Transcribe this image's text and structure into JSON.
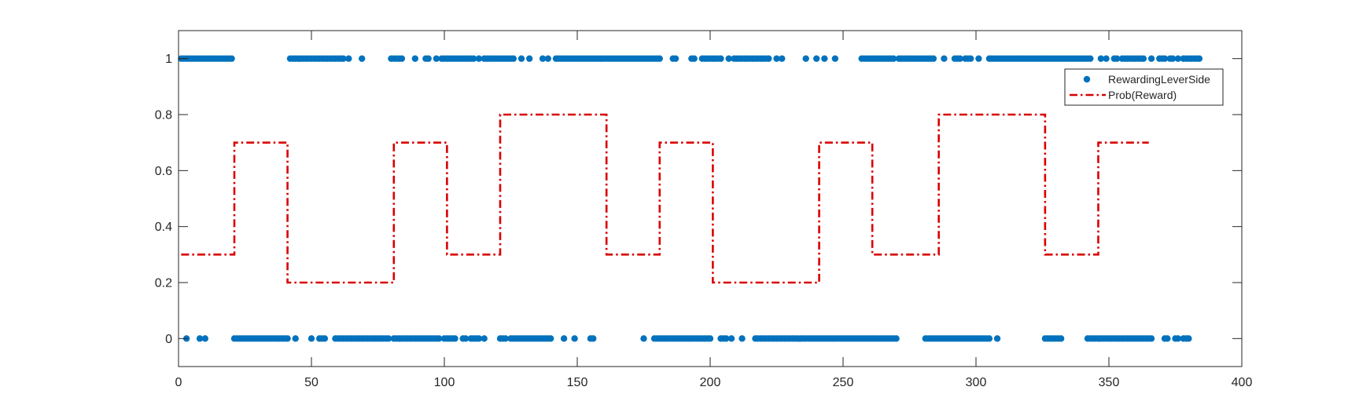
{
  "chart_data": {
    "type": "scatter",
    "title": "",
    "xlabel": "",
    "ylabel": "",
    "xlim": [
      0,
      400
    ],
    "ylim": [
      -0.1,
      1.1
    ],
    "xticks": [
      0,
      50,
      100,
      150,
      200,
      250,
      300,
      350,
      400
    ],
    "yticks": [
      0,
      0.2,
      0.4,
      0.6,
      0.8,
      1
    ],
    "xtick_labels": [
      "0",
      "50",
      "100",
      "150",
      "200",
      "250",
      "300",
      "350",
      "400"
    ],
    "ytick_labels": [
      "0",
      "0.2",
      "0.4",
      "0.6",
      "0.8",
      "1"
    ],
    "grid": false,
    "legend_position": "top-right",
    "series": [
      {
        "name": "RewardingLeverSide",
        "kind": "scatter",
        "color": "#0072BD",
        "ones": [
          1,
          2,
          3,
          4,
          5,
          6,
          7,
          8,
          9,
          10,
          11,
          12,
          13,
          14,
          15,
          16,
          17,
          18,
          19,
          20,
          42,
          43,
          44,
          45,
          46,
          47,
          48,
          49,
          50,
          51,
          52,
          53,
          54,
          55,
          56,
          57,
          58,
          59,
          60,
          61,
          62,
          64,
          69,
          80,
          81,
          82,
          83,
          84,
          89,
          93,
          94,
          97,
          99,
          100,
          101,
          102,
          103,
          104,
          105,
          106,
          107,
          108,
          109,
          110,
          111,
          113,
          115,
          116,
          117,
          118,
          119,
          120,
          121,
          122,
          123,
          124,
          125,
          126,
          129,
          132,
          137,
          139,
          142,
          143,
          144,
          145,
          146,
          147,
          148,
          149,
          150,
          151,
          152,
          153,
          154,
          155,
          156,
          157,
          158,
          159,
          160,
          161,
          162,
          163,
          164,
          165,
          166,
          167,
          168,
          169,
          170,
          171,
          172,
          173,
          174,
          175,
          176,
          177,
          178,
          179,
          180,
          181,
          186,
          187,
          193,
          194,
          197,
          198,
          199,
          200,
          201,
          202,
          203,
          204,
          207,
          209,
          210,
          211,
          212,
          213,
          214,
          215,
          216,
          217,
          218,
          219,
          220,
          221,
          222,
          225,
          227,
          236,
          240,
          243,
          247,
          257,
          258,
          259,
          260,
          261,
          262,
          263,
          264,
          265,
          266,
          267,
          268,
          269,
          271,
          272,
          273,
          274,
          275,
          276,
          277,
          278,
          279,
          280,
          281,
          282,
          283,
          284,
          288,
          292,
          293,
          294,
          296,
          297,
          298,
          301,
          305,
          306,
          307,
          308,
          309,
          310,
          311,
          312,
          313,
          314,
          315,
          316,
          317,
          318,
          319,
          320,
          321,
          322,
          323,
          324,
          325,
          326,
          327,
          328,
          329,
          330,
          331,
          332,
          333,
          334,
          335,
          336,
          337,
          338,
          339,
          340,
          341,
          342,
          343,
          347,
          349,
          352,
          353,
          355,
          356,
          357,
          358,
          359,
          360,
          361,
          362,
          363,
          366,
          369,
          370,
          371,
          373,
          374,
          376,
          378,
          379,
          380,
          381,
          382,
          383,
          384
        ],
        "zeros": [
          3,
          8,
          10,
          21,
          22,
          23,
          24,
          25,
          26,
          27,
          28,
          29,
          30,
          31,
          32,
          33,
          34,
          35,
          36,
          37,
          38,
          39,
          40,
          41,
          44,
          50,
          53,
          54,
          55,
          59,
          60,
          61,
          62,
          63,
          64,
          65,
          66,
          67,
          68,
          69,
          70,
          71,
          72,
          73,
          74,
          75,
          76,
          77,
          78,
          79,
          81,
          82,
          83,
          84,
          85,
          86,
          87,
          88,
          89,
          90,
          91,
          92,
          93,
          94,
          95,
          96,
          97,
          98,
          100,
          101,
          102,
          103,
          104,
          107,
          108,
          110,
          111,
          112,
          113,
          115,
          121,
          122,
          123,
          125,
          126,
          127,
          128,
          129,
          130,
          131,
          132,
          133,
          134,
          135,
          136,
          137,
          138,
          139,
          140,
          145,
          149,
          155,
          156,
          175,
          179,
          180,
          181,
          182,
          183,
          184,
          185,
          186,
          187,
          188,
          189,
          190,
          191,
          192,
          193,
          194,
          195,
          196,
          197,
          198,
          199,
          200,
          204,
          205,
          206,
          208,
          212,
          217,
          218,
          219,
          220,
          221,
          222,
          223,
          224,
          225,
          226,
          227,
          228,
          229,
          230,
          231,
          232,
          233,
          234,
          235,
          236,
          237,
          238,
          239,
          240,
          241,
          242,
          243,
          244,
          245,
          246,
          247,
          248,
          249,
          250,
          251,
          252,
          253,
          254,
          255,
          256,
          257,
          258,
          259,
          260,
          261,
          262,
          263,
          264,
          265,
          266,
          267,
          268,
          269,
          270,
          281,
          282,
          283,
          284,
          285,
          286,
          287,
          288,
          289,
          290,
          291,
          292,
          293,
          294,
          295,
          296,
          297,
          298,
          299,
          300,
          301,
          302,
          303,
          304,
          305,
          308,
          326,
          327,
          328,
          329,
          330,
          331,
          332,
          342,
          343,
          344,
          345,
          346,
          347,
          348,
          349,
          350,
          351,
          352,
          353,
          354,
          355,
          356,
          357,
          358,
          359,
          360,
          361,
          362,
          363,
          364,
          365,
          366,
          371,
          372,
          375,
          376,
          378,
          379,
          380
        ]
      },
      {
        "name": "Prob(Reward)",
        "kind": "step-line",
        "color": "#D90000",
        "x": [
          1,
          21,
          41,
          81,
          101,
          121,
          161,
          181,
          201,
          241,
          261,
          286,
          326,
          346,
          365
        ],
        "values": [
          0.3,
          0.7,
          0.2,
          0.7,
          0.3,
          0.8,
          0.3,
          0.7,
          0.2,
          0.7,
          0.3,
          0.8,
          0.3,
          0.7,
          0.7
        ]
      }
    ]
  }
}
